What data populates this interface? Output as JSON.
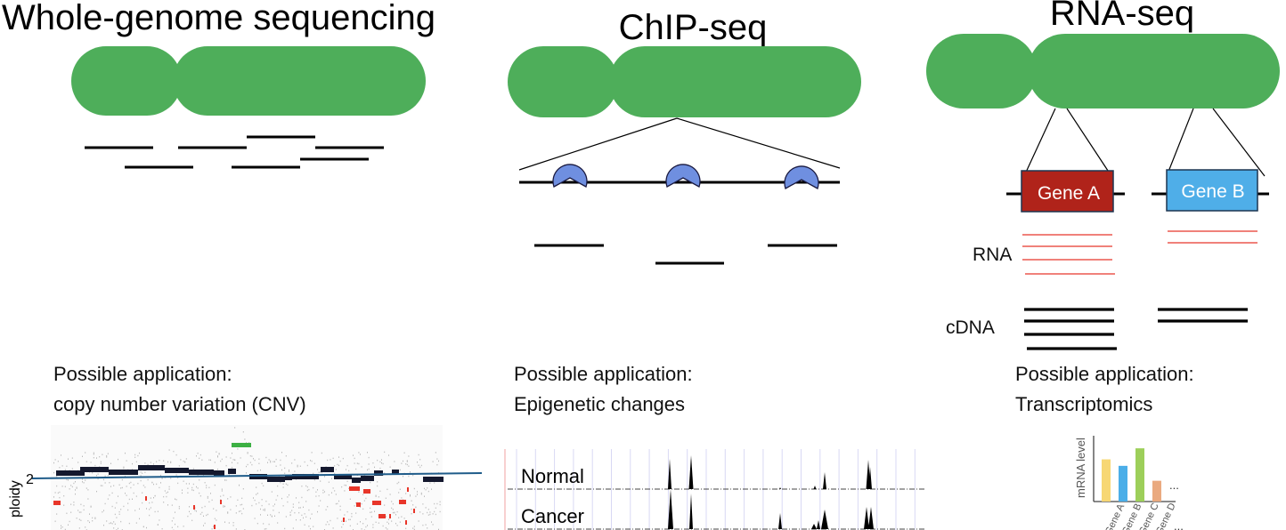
{
  "panels": {
    "wgs": {
      "title": "Whole-genome sequencing",
      "application_label": "Possible application:",
      "application": "copy number variation (CNV)",
      "plot": {
        "y_axis_label": "ploidy",
        "reference_tick": "2"
      }
    },
    "chip": {
      "title": "ChIP-seq",
      "application_label": "Possible application:",
      "application": "Epigenetic changes",
      "tracks": [
        "Normal",
        "Cancer"
      ]
    },
    "rna": {
      "title": "RNA-seq",
      "genes": [
        "Gene A",
        "Gene B"
      ],
      "rna_label": "RNA",
      "cdna_label": "cDNA",
      "application_label": "Possible application:",
      "application": "Transcriptomics",
      "chart": {
        "ylabel": "mRNA level",
        "categories": [
          "Gene A",
          "Gene B",
          "Gene C",
          "Gene D"
        ],
        "relative_levels": [
          0.65,
          0.55,
          0.82,
          0.32
        ],
        "colors": [
          "#F7D774",
          "#4BAEE8",
          "#9DCF5A",
          "#EAAA80"
        ],
        "ellipsis": "..."
      }
    }
  },
  "colors": {
    "chromosome": "#4EAE5A",
    "protein": "#6F8FE0",
    "gene_a": "#B0231A",
    "gene_b": "#4FAEE8",
    "rna": "#E8362A",
    "ploidy_line": "#1F5C8A",
    "gain": "#3CB043",
    "loss": "#E8362A"
  }
}
